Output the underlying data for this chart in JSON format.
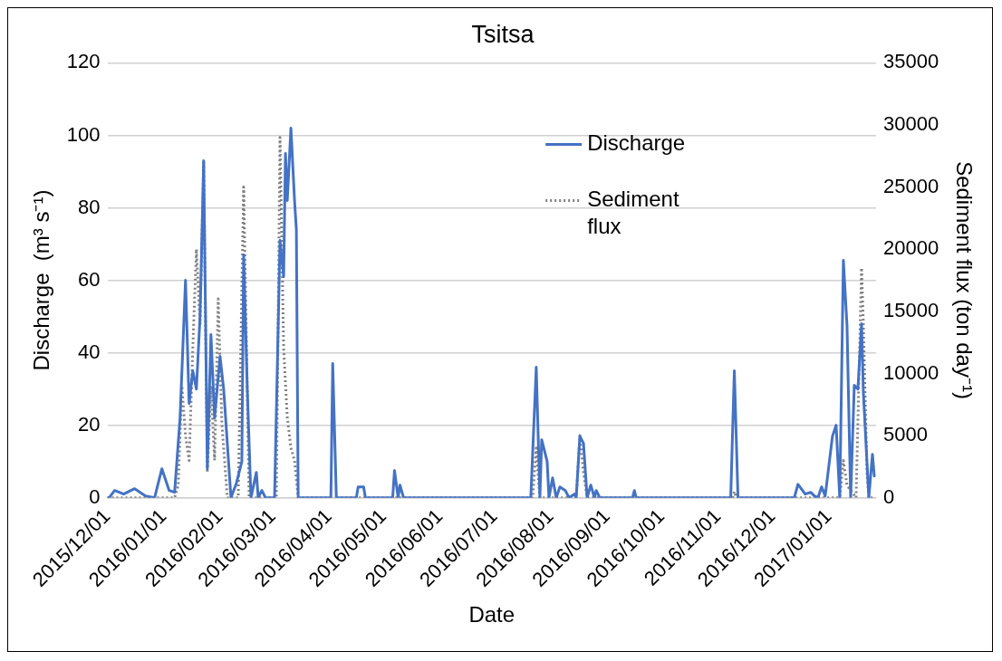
{
  "chart_data": {
    "type": "line",
    "title": "Tsitsa",
    "xlabel": "Date",
    "ylabel": "Discharge  (m³ s⁻¹)",
    "y2label": "Sediment flux (ton day⁻¹)",
    "xlim": [
      "2015-12-01",
      "2017-01-27"
    ],
    "xticks": [
      {
        "value": "2015-12-01",
        "label": "2015/12/01"
      },
      {
        "value": "2016-01-01",
        "label": "2016/01/01"
      },
      {
        "value": "2016-02-01",
        "label": "2016/02/01"
      },
      {
        "value": "2016-03-01",
        "label": "2016/03/01"
      },
      {
        "value": "2016-04-01",
        "label": "2016/04/01"
      },
      {
        "value": "2016-05-01",
        "label": "2016/05/01"
      },
      {
        "value": "2016-06-01",
        "label": "2016/06/01"
      },
      {
        "value": "2016-07-01",
        "label": "2016/07/01"
      },
      {
        "value": "2016-08-01",
        "label": "2016/08/01"
      },
      {
        "value": "2016-09-01",
        "label": "2016/09/01"
      },
      {
        "value": "2016-10-01",
        "label": "2016/10/01"
      },
      {
        "value": "2016-11-01",
        "label": "2016/11/01"
      },
      {
        "value": "2016-12-01",
        "label": "2016/12/01"
      },
      {
        "value": "2017-01-01",
        "label": "2017/01/01"
      }
    ],
    "ylim": [
      0,
      120
    ],
    "yticks": [
      0,
      20,
      40,
      60,
      80,
      100,
      120
    ],
    "y2lim": [
      0,
      35000
    ],
    "y2ticks": [
      0,
      5000,
      10000,
      15000,
      20000,
      25000,
      30000,
      35000
    ],
    "grid": "y",
    "legend": "top right",
    "marker": "none",
    "series": [
      {
        "name": "Discharge",
        "color": "#4472c4",
        "line_style": "solid",
        "x": [
          "2015-12-01",
          "2015-12-02",
          "2015-12-05",
          "2015-12-10",
          "2015-12-16",
          "2015-12-22",
          "2015-12-27",
          "2015-12-31",
          "2016-01-04",
          "2016-01-07",
          "2016-01-10",
          "2016-01-13",
          "2016-01-15",
          "2016-01-17",
          "2016-01-19",
          "2016-01-21",
          "2016-01-23",
          "2016-01-25",
          "2016-01-27",
          "2016-01-29",
          "2016-02-01",
          "2016-02-03",
          "2016-02-07",
          "2016-02-10",
          "2016-02-13",
          "2016-02-14",
          "2016-02-16",
          "2016-02-18",
          "2016-02-21",
          "2016-02-22",
          "2016-02-24",
          "2016-02-26",
          "2016-03-02",
          "2016-03-05",
          "2016-03-07",
          "2016-03-08",
          "2016-03-09",
          "2016-03-11",
          "2016-03-13",
          "2016-03-14",
          "2016-03-15",
          "2016-04-02",
          "2016-04-03",
          "2016-04-05",
          "2016-04-16",
          "2016-04-17",
          "2016-04-20",
          "2016-04-21",
          "2016-05-06",
          "2016-05-07",
          "2016-05-09",
          "2016-05-10",
          "2016-05-12",
          "2016-07-21",
          "2016-07-24",
          "2016-07-26",
          "2016-07-27",
          "2016-07-30",
          "2016-07-31",
          "2016-08-02",
          "2016-08-04",
          "2016-08-06",
          "2016-08-09",
          "2016-08-11",
          "2016-08-14",
          "2016-08-15",
          "2016-08-17",
          "2016-08-19",
          "2016-08-21",
          "2016-08-23",
          "2016-08-25",
          "2016-08-26",
          "2016-08-28",
          "2016-09-15",
          "2016-09-16",
          "2016-09-17",
          "2016-11-08",
          "2016-11-10",
          "2016-11-12",
          "2016-12-13",
          "2016-12-15",
          "2016-12-19",
          "2016-12-22",
          "2016-12-24",
          "2016-12-26",
          "2016-12-28",
          "2016-12-30",
          "2017-01-03",
          "2017-01-05",
          "2017-01-07",
          "2017-01-09",
          "2017-01-11",
          "2017-01-13",
          "2017-01-15",
          "2017-01-17",
          "2017-01-19",
          "2017-01-20",
          "2017-01-23",
          "2017-01-25",
          "2017-01-26"
        ],
        "values": [
          0,
          0,
          2,
          1,
          2.5,
          0.5,
          0,
          8,
          2,
          1.5,
          22,
          60,
          26,
          35,
          30,
          50,
          93,
          8,
          45,
          22,
          39,
          30,
          0,
          4,
          10,
          67,
          30,
          0,
          7,
          0,
          2,
          0,
          0,
          71,
          61,
          95,
          82,
          102,
          82,
          74,
          0,
          0,
          37,
          0,
          0,
          3,
          3,
          0,
          0,
          7.5,
          0,
          3.5,
          0,
          0,
          36,
          0,
          16,
          10,
          0,
          5.5,
          0,
          3,
          2,
          0,
          1,
          0,
          17,
          15,
          0,
          3.5,
          0,
          2,
          0,
          0,
          2,
          0,
          0,
          35,
          0,
          0,
          3.7,
          1,
          1.5,
          0.5,
          0,
          3,
          0.5,
          17,
          20,
          0,
          65.5,
          47.5,
          0,
          31,
          30,
          48,
          29,
          0,
          12,
          6
        ]
      },
      {
        "name": "Sediment flux",
        "color": "#808080",
        "line_style": "dotted",
        "axis": "y2",
        "x": [
          "2015-12-01",
          "2016-01-07",
          "2016-01-09",
          "2016-01-11",
          "2016-01-13",
          "2016-01-15",
          "2016-01-17",
          "2016-01-19",
          "2016-01-21",
          "2016-01-23",
          "2016-01-25",
          "2016-01-27",
          "2016-01-29",
          "2016-01-31",
          "2016-02-02",
          "2016-02-05",
          "2016-02-11",
          "2016-02-14",
          "2016-02-17",
          "2016-03-03",
          "2016-03-05",
          "2016-03-07",
          "2016-03-09",
          "2016-03-11",
          "2016-03-13",
          "2016-03-15",
          "2016-04-02",
          "2016-04-03",
          "2016-04-05",
          "2016-07-22",
          "2016-07-24",
          "2016-07-26",
          "2016-08-15",
          "2016-08-17",
          "2016-08-19",
          "2016-08-21",
          "2016-11-09",
          "2016-11-10",
          "2016-11-11",
          "2017-01-07",
          "2017-01-09",
          "2017-01-11",
          "2017-01-16",
          "2017-01-19",
          "2017-01-20",
          "2017-01-22",
          "2017-01-23",
          "2017-01-26"
        ],
        "values": [
          0,
          0,
          1000,
          9000,
          5000,
          3000,
          12000,
          20000,
          14000,
          27000,
          2000,
          9000,
          3000,
          16000,
          6000,
          0,
          0,
          25000,
          0,
          0,
          29000,
          12000,
          6500,
          4000,
          3000,
          0,
          0,
          null,
          0,
          0,
          4000,
          0,
          0,
          5000,
          2000,
          0,
          0,
          500,
          0,
          0,
          3000,
          1000,
          0,
          18500,
          14000,
          2000,
          0,
          0
        ]
      }
    ]
  }
}
